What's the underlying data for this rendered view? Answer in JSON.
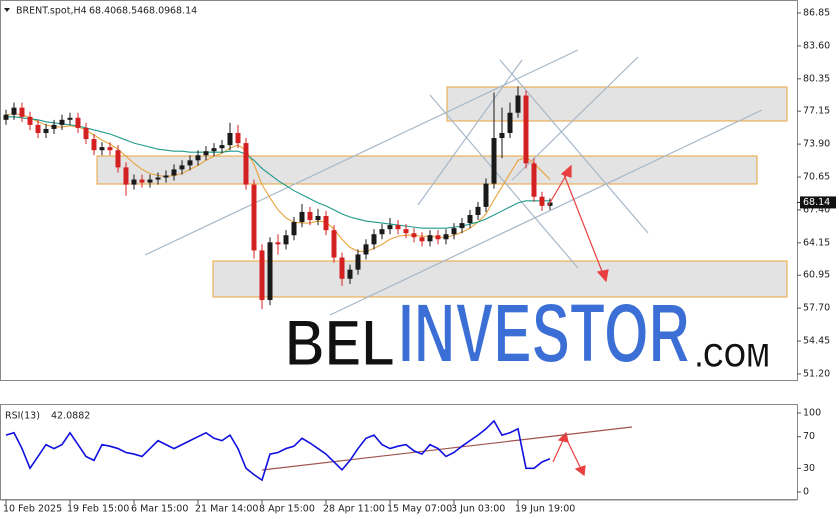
{
  "chart_data": [
    {
      "type": "candlestick",
      "title": "BRENT.spot,H4",
      "ohlc_labels": [
        "68.40",
        "68.54",
        "68.09",
        "68.14"
      ],
      "categories": [
        "10 Feb 2025",
        null,
        null,
        null,
        null,
        null,
        null,
        null,
        "19 Feb 15:00",
        null,
        null,
        null,
        null,
        null,
        null,
        null,
        "6 Mar 15:00",
        null,
        null,
        null,
        null,
        null,
        null,
        null,
        "21 Mar 14:00",
        null,
        null,
        null,
        null,
        null,
        null,
        null,
        "8 Apr 15:00",
        null,
        null,
        null,
        null,
        null,
        null,
        null,
        "28 Apr 11:00",
        null,
        null,
        null,
        null,
        null,
        null,
        null,
        "15 May 07:00",
        null,
        null,
        null,
        null,
        null,
        null,
        null,
        "3 Jun 03:00",
        null,
        null,
        null,
        null,
        null,
        null,
        null,
        "19 Jun 19:00",
        null,
        null,
        null,
        null
      ],
      "open": [
        76.3,
        76.8,
        77.5,
        76.6,
        75.8,
        75.0,
        75.4,
        75.8,
        76.3,
        76.5,
        75.5,
        74.4,
        73.3,
        73.6,
        73.3,
        71.6,
        69.9,
        70.4,
        70.1,
        70.4,
        70.6,
        70.8,
        71.4,
        71.8,
        72.3,
        72.8,
        73.2,
        73.5,
        73.8,
        75.0,
        74.0,
        69.9,
        63.4,
        58.5,
        64.2,
        64.0,
        64.9,
        66.2,
        67.2,
        66.4,
        66.8,
        65.4,
        62.7,
        60.6,
        61.5,
        63.0,
        64.0,
        65.0,
        65.5,
        65.9,
        65.5,
        65.1,
        64.7,
        64.3,
        64.9,
        64.5,
        65.0,
        65.6,
        66.1,
        66.9,
        67.7,
        70.0,
        74.5,
        75.0,
        77.0,
        78.7,
        72.0,
        68.7,
        67.8
      ],
      "high": [
        77.3,
        78.0,
        78.0,
        77.1,
        76.3,
        75.9,
        76.3,
        76.8,
        77.0,
        77.0,
        76.0,
        74.9,
        74.1,
        74.1,
        73.8,
        72.1,
        70.9,
        70.9,
        70.9,
        71.1,
        71.3,
        71.9,
        72.3,
        72.8,
        73.3,
        73.7,
        74.0,
        74.3,
        76.0,
        75.8,
        74.5,
        70.4,
        64.0,
        64.7,
        65.0,
        65.4,
        66.7,
        68.0,
        67.7,
        67.5,
        67.3,
        65.9,
        63.2,
        62.0,
        63.5,
        64.5,
        65.5,
        66.0,
        66.6,
        66.4,
        66.0,
        65.6,
        65.2,
        65.4,
        65.4,
        65.5,
        66.1,
        66.6,
        67.4,
        68.2,
        70.5,
        79.0,
        77.5,
        78.0,
        79.6,
        79.2,
        72.5,
        69.2,
        68.54
      ],
      "low": [
        75.8,
        76.3,
        76.1,
        75.3,
        74.5,
        74.5,
        74.9,
        75.3,
        75.8,
        75.0,
        73.9,
        72.8,
        72.8,
        72.8,
        71.1,
        68.8,
        69.4,
        69.6,
        69.6,
        69.9,
        70.1,
        70.3,
        70.9,
        71.3,
        71.8,
        72.3,
        72.7,
        73.0,
        73.3,
        73.5,
        69.4,
        62.6,
        57.6,
        58.0,
        63.0,
        63.5,
        64.4,
        65.7,
        65.9,
        65.9,
        64.9,
        62.2,
        59.9,
        60.1,
        61.0,
        62.5,
        63.5,
        64.5,
        65.0,
        65.0,
        64.6,
        64.2,
        63.8,
        63.8,
        64.0,
        64.0,
        64.5,
        65.1,
        65.6,
        66.4,
        67.2,
        69.5,
        72.5,
        74.5,
        76.5,
        71.5,
        68.2,
        67.3,
        67.4
      ],
      "close": [
        76.8,
        77.5,
        76.6,
        75.8,
        75.0,
        75.4,
        75.8,
        76.3,
        76.5,
        75.5,
        74.4,
        73.3,
        73.6,
        73.3,
        71.6,
        69.9,
        70.4,
        70.1,
        70.4,
        70.6,
        70.8,
        71.4,
        71.8,
        72.3,
        72.8,
        73.2,
        73.5,
        73.8,
        75.0,
        74.0,
        69.9,
        63.4,
        58.5,
        64.2,
        64.0,
        64.9,
        66.2,
        67.2,
        66.4,
        66.8,
        65.4,
        62.7,
        60.6,
        61.5,
        63.0,
        64.0,
        65.0,
        65.5,
        65.9,
        65.5,
        65.1,
        64.7,
        64.3,
        64.9,
        64.5,
        65.0,
        65.6,
        66.1,
        66.9,
        67.7,
        70.0,
        74.5,
        75.0,
        77.0,
        78.7,
        72.0,
        68.7,
        67.8,
        68.14
      ],
      "up_color": "#1a1a1a",
      "down_color": "#d42020",
      "moving_averages": [
        {
          "color": "#e8a33b",
          "values": [
            76.8,
            76.9,
            76.8,
            76.5,
            76.1,
            75.8,
            75.6,
            75.6,
            75.7,
            75.6,
            75.3,
            74.8,
            74.3,
            73.9,
            73.4,
            72.7,
            72.0,
            71.4,
            71.0,
            70.8,
            70.7,
            70.8,
            71.0,
            71.4,
            71.8,
            72.3,
            72.7,
            73.0,
            73.5,
            73.8,
            73.3,
            71.9,
            69.9,
            68.6,
            67.4,
            66.6,
            66.2,
            66.1,
            66.1,
            66.3,
            66.2,
            65.5,
            64.5,
            63.7,
            63.3,
            63.3,
            63.6,
            64.0,
            64.5,
            64.8,
            64.9,
            64.9,
            64.8,
            64.8,
            64.7,
            64.7,
            64.9,
            65.2,
            65.6,
            66.2,
            67.0,
            68.4,
            69.7,
            71.0,
            72.3,
            72.6,
            72.0,
            71.2,
            70.4
          ]
        },
        {
          "color": "#1f9a8a",
          "values": [
            76.6,
            76.6,
            76.5,
            76.4,
            76.3,
            76.1,
            76.0,
            75.9,
            75.8,
            75.7,
            75.5,
            75.3,
            75.1,
            74.9,
            74.6,
            74.3,
            74.0,
            73.8,
            73.6,
            73.4,
            73.3,
            73.2,
            73.2,
            73.1,
            73.1,
            73.1,
            73.1,
            73.1,
            73.2,
            73.2,
            72.9,
            72.3,
            71.5,
            70.9,
            70.3,
            69.8,
            69.3,
            68.9,
            68.5,
            68.1,
            67.8,
            67.4,
            67.0,
            66.7,
            66.5,
            66.3,
            66.2,
            66.1,
            66.0,
            65.9,
            65.8,
            65.7,
            65.6,
            65.6,
            65.6,
            65.6,
            65.7,
            65.8,
            66.0,
            66.2,
            66.5,
            66.9,
            67.3,
            67.7,
            68.1,
            68.3,
            68.3,
            68.3,
            68.3
          ]
        }
      ],
      "ylim": [
        50.6,
        87.74
      ],
      "yticks": [
        86.85,
        {
          "value": 83.6,
          "label": "83.60"
        },
        {
          "value": 80.35,
          "label": "80.35"
        },
        77.15,
        {
          "value": 73.9,
          "label": "73.90"
        },
        {
          "value": 70.65,
          "label": "70.65"
        },
        {
          "value": 67.4,
          "label": "67.40"
        },
        64.15,
        60.95,
        {
          "value": 57.7,
          "label": "57.70"
        },
        54.45,
        {
          "value": 51.2,
          "label": "51.20"
        }
      ],
      "watermark": [
        "BEL",
        "INVESTOR",
        ".COM"
      ]
    },
    {
      "type": "line",
      "title": "RSI(13)",
      "value_label": "42.0882",
      "color": "#1010e0",
      "values": [
        72,
        75,
        55,
        30,
        45,
        60,
        55,
        60,
        75,
        60,
        45,
        40,
        60,
        58,
        55,
        50,
        48,
        45,
        55,
        65,
        60,
        55,
        60,
        65,
        70,
        75,
        68,
        65,
        72,
        55,
        30,
        22,
        15,
        48,
        50,
        55,
        58,
        68,
        62,
        55,
        48,
        38,
        28,
        40,
        55,
        68,
        72,
        60,
        55,
        58,
        60,
        52,
        48,
        60,
        55,
        45,
        50,
        58,
        65,
        72,
        80,
        90,
        72,
        75,
        80,
        30,
        30,
        38,
        42.09
      ],
      "ylim": [
        0,
        100
      ],
      "yticks": [
        100,
        70,
        30,
        0
      ]
    }
  ]
}
